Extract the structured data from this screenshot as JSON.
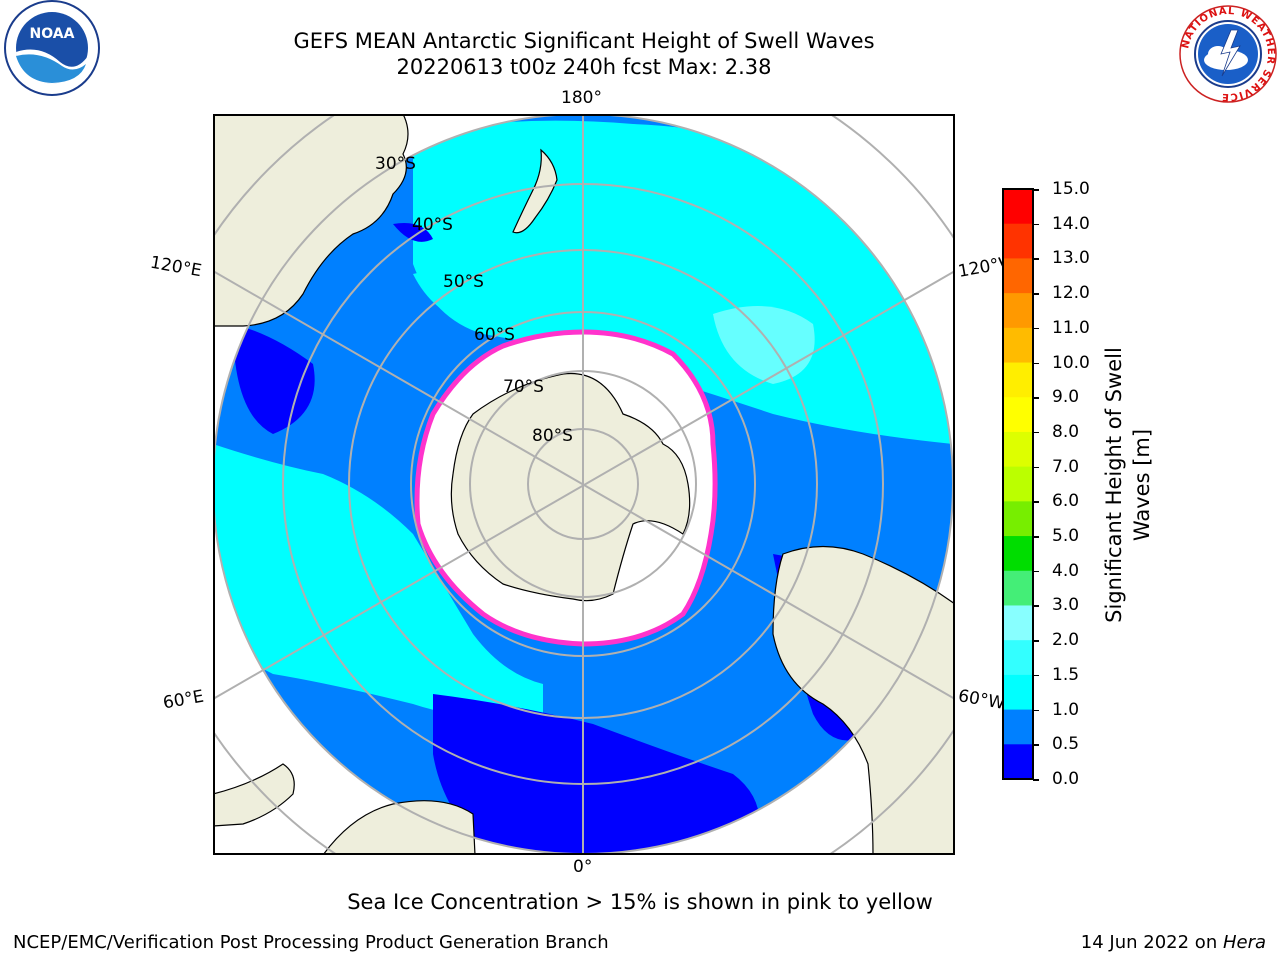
{
  "header": {
    "title_line1": "GEFS MEAN Antarctic Significant Height of Swell Waves",
    "title_line2": "20220613 t00z 240h fcst   Max: 2.38"
  },
  "logos": {
    "noaa_text": "NOAA",
    "nws_ring_text": "NATIONAL WEATHER SERVICE"
  },
  "map": {
    "lon_labels": {
      "top": "180°",
      "bottom": "0°",
      "upper_left": "120°E",
      "lower_left": "60°E",
      "upper_right": "120°W",
      "lower_right": "60°W"
    },
    "lat_labels": [
      "30°S",
      "40°S",
      "50°S",
      "60°S",
      "70°S",
      "80°S"
    ],
    "colors": {
      "land": "#eeeedc",
      "sea_ice": "#ffffff",
      "grid": "#b0b0b0",
      "ice_edge": "#ff33cc"
    }
  },
  "colorbar": {
    "title_line1": "Significant Height of Swell",
    "title_line2": "Waves [m]",
    "ticks": [
      "15.0",
      "14.0",
      "13.0",
      "12.0",
      "11.0",
      "10.0",
      "9.0",
      "8.0",
      "7.0",
      "6.0",
      "5.0",
      "4.0",
      "3.0",
      "2.0",
      "1.5",
      "1.0",
      "0.5",
      "0.0"
    ],
    "colors": [
      "#ff0000",
      "#ff3300",
      "#ff6600",
      "#ff9900",
      "#ffbb00",
      "#ffee00",
      "#ffff00",
      "#ddff00",
      "#bbff00",
      "#77ee00",
      "#00dd00",
      "#44ee77",
      "#88ffff",
      "#33ffff",
      "#00ffff",
      "#0080ff",
      "#0000ff"
    ]
  },
  "footer": {
    "note": "Sea Ice Concentration > 15% is shown in pink to yellow",
    "left": "NCEP/EMC/Verification Post Processing Product Generation Branch",
    "right_prefix": "14 Jun 2022 on ",
    "right_host": "Hera"
  }
}
